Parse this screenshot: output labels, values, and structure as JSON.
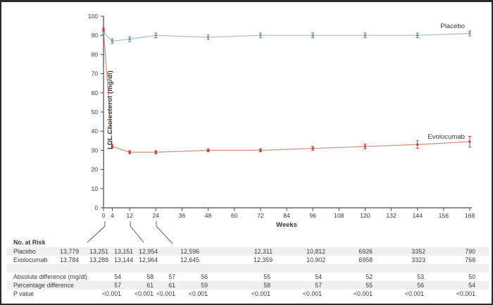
{
  "chart_data": {
    "type": "line",
    "title": "",
    "xlabel": "Weeks",
    "ylabel": "LDL Cholesterol (mg/dl)",
    "xlim": [
      0,
      168
    ],
    "ylim": [
      0,
      100
    ],
    "grid": false,
    "legend_position": "inline-right-of-lines",
    "x_ticks": [
      0,
      4,
      12,
      24,
      36,
      48,
      60,
      72,
      84,
      96,
      108,
      120,
      132,
      144,
      156,
      168
    ],
    "y_ticks": [
      0,
      10,
      20,
      30,
      40,
      50,
      60,
      70,
      80,
      90,
      100
    ],
    "x": [
      0,
      4,
      12,
      24,
      48,
      72,
      96,
      120,
      144,
      168
    ],
    "series": [
      {
        "name": "Placebo",
        "line_color": "#a6bbd2",
        "marker_color": "#5a7fa8",
        "values": [
          91.5,
          87,
          88,
          90,
          89,
          90,
          90,
          90,
          90,
          91
        ],
        "err": [
          0.8,
          1.2,
          1.2,
          1.2,
          1.2,
          1.2,
          1.2,
          1.2,
          1.2,
          1.3
        ]
      },
      {
        "name": "Evolocumab",
        "line_color": "#c98f80",
        "marker_color": "#b2473a",
        "values": [
          93,
          32,
          29,
          29,
          30,
          30,
          31,
          32,
          33,
          34.5
        ],
        "err": [
          0.8,
          1.0,
          0.8,
          0.8,
          0.8,
          0.8,
          1.0,
          1.2,
          2.0,
          2.8
        ]
      }
    ]
  },
  "risk_table": {
    "header": "No. at Risk",
    "rows": [
      {
        "label": "Placebo",
        "values": [
          "13,779",
          "13,251",
          "13,151",
          "12,954",
          "12,596",
          "12,311",
          "10,812",
          "6926",
          "3352",
          "790"
        ]
      },
      {
        "label": "Evolocumab",
        "values": [
          "13,784",
          "13,288",
          "13,144",
          "12,964",
          "12,645",
          "12,359",
          "10,902",
          "6958",
          "3323",
          "768"
        ]
      }
    ],
    "stats_rows": [
      {
        "label": "Absolute difference (mg/dl)",
        "values": [
          "54",
          "58",
          "57",
          "56",
          "55",
          "54",
          "52",
          "53",
          "50"
        ]
      },
      {
        "label": "Percentage difference",
        "values": [
          "57",
          "61",
          "61",
          "59",
          "58",
          "57",
          "55",
          "56",
          "54"
        ]
      },
      {
        "label": "P value",
        "values": [
          "<0.001",
          "<0.001",
          "<0.001",
          "<0.001",
          "<0.001",
          "<0.001",
          "<0.001",
          "<0.001",
          "<0.001"
        ]
      }
    ]
  },
  "colors": {
    "axis": "#4a4a4a",
    "text": "#3a3a3a",
    "stripe": "#f0f0ee",
    "frame_border": "#2b2b2b"
  }
}
